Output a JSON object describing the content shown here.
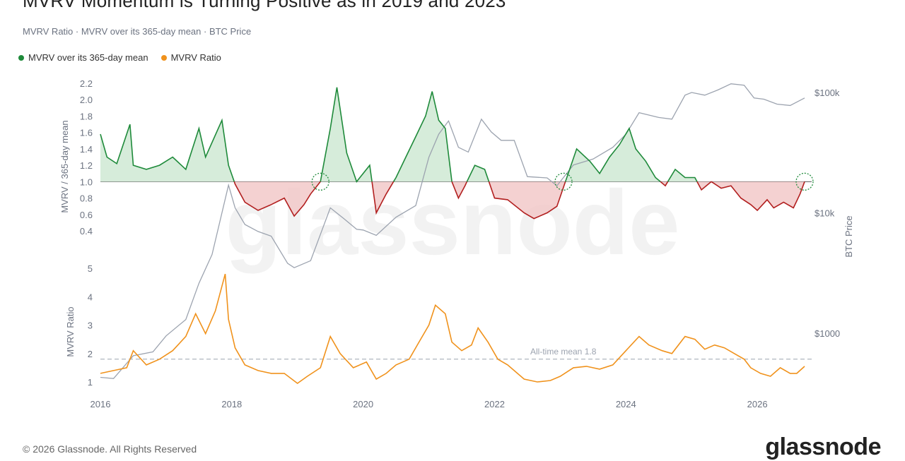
{
  "title": "MVRV Momentum is Turning Positive as in 2019 and 2023",
  "subtitle": "MVRV Ratio · MVRV over its 365-day mean · BTC Price",
  "legend": [
    {
      "label": "MVRV over its 365-day mean",
      "color": "#1e8a3a"
    },
    {
      "label": "MVRV Ratio",
      "color": "#f0921c"
    }
  ],
  "footer": {
    "copyright": "© 2026 Glassnode. All Rights Reserved",
    "logo": "glassnode",
    "watermark": "glassnode"
  },
  "chart_data": {
    "type": "line",
    "x_ticks": [
      "2016",
      "2018",
      "2020",
      "2022",
      "2024",
      "2026"
    ],
    "top_panel": {
      "ylabel": "MVRV / 365-day mean",
      "y_ticks": [
        "2.2",
        "2.0",
        "1.8",
        "1.6",
        "1.4",
        "1.2",
        "1.0",
        "0.8",
        "0.6",
        "0.4"
      ],
      "baseline": 1.0,
      "colors": {
        "above": "#1e8a3a",
        "below": "#b21f1f",
        "above_fill": "#cfe9d4",
        "below_fill": "#f2c9c9"
      },
      "series": {
        "x": [
          2016.0,
          2016.1,
          2016.25,
          2016.45,
          2016.5,
          2016.7,
          2016.9,
          2017.1,
          2017.3,
          2017.5,
          2017.6,
          2017.85,
          2017.95,
          2018.05,
          2018.2,
          2018.4,
          2018.6,
          2018.8,
          2018.95,
          2019.1,
          2019.2,
          2019.35,
          2019.5,
          2019.6,
          2019.75,
          2019.9,
          2020.0,
          2020.1,
          2020.2,
          2020.35,
          2020.5,
          2020.65,
          2020.8,
          2020.95,
          2021.05,
          2021.15,
          2021.25,
          2021.35,
          2021.45,
          2021.55,
          2021.7,
          2021.85,
          2022.0,
          2022.2,
          2022.45,
          2022.6,
          2022.8,
          2022.95,
          2023.1,
          2023.25,
          2023.45,
          2023.6,
          2023.75,
          2023.9,
          2024.05,
          2024.15,
          2024.3,
          2024.45,
          2024.6,
          2024.75,
          2024.9,
          2025.05,
          2025.15,
          2025.3,
          2025.45,
          2025.6,
          2025.75,
          2025.9,
          2026.0,
          2026.15,
          2026.25,
          2026.4,
          2026.55,
          2026.65,
          2026.72
        ],
        "y": [
          1.58,
          1.3,
          1.22,
          1.7,
          1.2,
          1.15,
          1.2,
          1.3,
          1.15,
          1.65,
          1.3,
          1.75,
          1.2,
          0.97,
          0.75,
          0.65,
          0.72,
          0.8,
          0.58,
          0.72,
          0.85,
          1.0,
          1.65,
          2.15,
          1.35,
          1.0,
          1.1,
          1.2,
          0.62,
          0.85,
          1.05,
          1.3,
          1.55,
          1.8,
          2.1,
          1.75,
          1.65,
          1.0,
          0.8,
          0.95,
          1.2,
          1.15,
          0.8,
          0.78,
          0.62,
          0.55,
          0.62,
          0.7,
          1.05,
          1.4,
          1.25,
          1.1,
          1.3,
          1.45,
          1.65,
          1.4,
          1.25,
          1.05,
          0.95,
          1.15,
          1.05,
          1.05,
          0.9,
          1.0,
          0.92,
          0.95,
          0.8,
          0.72,
          0.65,
          0.78,
          0.68,
          0.75,
          0.68,
          0.85,
          1.0
        ],
        "markers": [
          2019.35,
          2023.05,
          2026.72
        ]
      }
    },
    "bottom_panel": {
      "ylabel": "MVRV Ratio",
      "y_ticks": [
        "5",
        "4",
        "3",
        "2",
        "1"
      ],
      "mean_line": {
        "value": 1.8,
        "label": "All-time mean 1.8"
      },
      "series": {
        "name": "MVRV Ratio",
        "color": "#f0921c",
        "x": [
          2016.0,
          2016.2,
          2016.4,
          2016.5,
          2016.7,
          2016.9,
          2017.1,
          2017.3,
          2017.45,
          2017.6,
          2017.75,
          2017.9,
          2017.95,
          2018.05,
          2018.2,
          2018.4,
          2018.6,
          2018.8,
          2019.0,
          2019.15,
          2019.35,
          2019.5,
          2019.65,
          2019.85,
          2020.05,
          2020.2,
          2020.35,
          2020.5,
          2020.7,
          2020.85,
          2021.0,
          2021.1,
          2021.25,
          2021.35,
          2021.5,
          2021.65,
          2021.75,
          2021.9,
          2022.05,
          2022.2,
          2022.45,
          2022.65,
          2022.85,
          2023.0,
          2023.2,
          2023.4,
          2023.6,
          2023.8,
          2024.0,
          2024.2,
          2024.35,
          2024.55,
          2024.7,
          2024.9,
          2025.05,
          2025.2,
          2025.35,
          2025.5,
          2025.65,
          2025.8,
          2025.9,
          2026.05,
          2026.2,
          2026.35,
          2026.5,
          2026.6,
          2026.72
        ],
        "y": [
          1.3,
          1.4,
          1.5,
          2.1,
          1.6,
          1.8,
          2.1,
          2.6,
          3.4,
          2.7,
          3.5,
          4.8,
          3.2,
          2.2,
          1.6,
          1.4,
          1.3,
          1.3,
          0.95,
          1.2,
          1.5,
          2.6,
          2.0,
          1.5,
          1.7,
          1.1,
          1.3,
          1.6,
          1.8,
          2.4,
          3.0,
          3.7,
          3.4,
          2.4,
          2.1,
          2.3,
          2.9,
          2.4,
          1.8,
          1.6,
          1.1,
          1.0,
          1.05,
          1.2,
          1.5,
          1.55,
          1.45,
          1.6,
          2.1,
          2.6,
          2.3,
          2.1,
          2.0,
          2.6,
          2.5,
          2.15,
          2.3,
          2.2,
          2.0,
          1.8,
          1.5,
          1.3,
          1.2,
          1.5,
          1.3,
          1.3,
          1.55
        ]
      }
    },
    "btc_price": {
      "ylabel": "BTC Price",
      "y_ticks": [
        "$100k",
        "$10k",
        "$1000"
      ],
      "color": "#9ca3af",
      "x": [
        2016.0,
        2016.2,
        2016.5,
        2016.8,
        2017.0,
        2017.3,
        2017.5,
        2017.7,
        2017.85,
        2017.95,
        2018.05,
        2018.2,
        2018.4,
        2018.6,
        2018.85,
        2018.95,
        2019.2,
        2019.5,
        2019.7,
        2019.9,
        2020.0,
        2020.2,
        2020.5,
        2020.8,
        2021.0,
        2021.15,
        2021.3,
        2021.45,
        2021.6,
        2021.8,
        2021.95,
        2022.1,
        2022.3,
        2022.5,
        2022.8,
        2022.95,
        2023.2,
        2023.5,
        2023.8,
        2024.0,
        2024.2,
        2024.5,
        2024.7,
        2024.9,
        2025.0,
        2025.2,
        2025.4,
        2025.6,
        2025.8,
        2025.95,
        2026.1,
        2026.3,
        2026.5,
        2026.72
      ],
      "y": [
        430,
        420,
        650,
        700,
        950,
        1300,
        2600,
        4500,
        10000,
        17000,
        11000,
        8000,
        7000,
        6400,
        3800,
        3500,
        4000,
        11000,
        9000,
        7300,
        7200,
        6500,
        9200,
        11500,
        29000,
        45000,
        58000,
        35000,
        32000,
        60000,
        47000,
        40000,
        40000,
        20000,
        19500,
        16800,
        25000,
        28000,
        35000,
        45000,
        68000,
        62000,
        60000,
        95000,
        100000,
        95000,
        105000,
        118000,
        115000,
        90000,
        88000,
        80000,
        78000,
        90000
      ]
    }
  }
}
